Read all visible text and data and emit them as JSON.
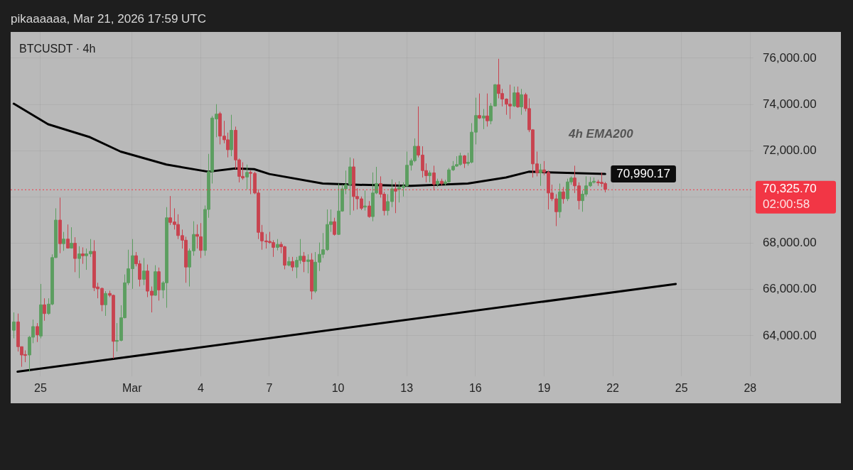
{
  "chart_data": {
    "type": "candlestick",
    "title": "BTCUSDT · 4h",
    "subtitle": "pikaaaaaa, Mar 21, 2026 17:59 UTC",
    "x": [
      "2026-02-23T20:00",
      "2026-02-24T00:00",
      "2026-02-24T04:00",
      "2026-02-24T08:00",
      "2026-02-24T12:00",
      "2026-02-24T16:00",
      "2026-02-24T20:00",
      "2026-02-25T00:00",
      "2026-02-25T04:00",
      "2026-02-25T08:00",
      "2026-02-25T12:00",
      "2026-02-25T16:00",
      "2026-02-25T20:00",
      "2026-02-26T00:00",
      "2026-02-26T04:00",
      "2026-02-26T08:00",
      "2026-02-26T12:00",
      "2026-02-26T16:00",
      "2026-02-26T20:00",
      "2026-02-27T00:00",
      "2026-02-27T04:00",
      "2026-02-27T08:00",
      "2026-02-27T12:00",
      "2026-02-27T16:00",
      "2026-02-27T20:00",
      "2026-02-28T00:00",
      "2026-02-28T04:00",
      "2026-02-28T08:00",
      "2026-02-28T12:00",
      "2026-02-28T16:00",
      "2026-02-28T20:00",
      "2026-03-01T00:00",
      "2026-03-01T04:00",
      "2026-03-01T08:00",
      "2026-03-01T12:00",
      "2026-03-01T16:00",
      "2026-03-01T20:00",
      "2026-03-02T00:00",
      "2026-03-02T04:00",
      "2026-03-02T08:00",
      "2026-03-02T12:00",
      "2026-03-02T16:00",
      "2026-03-02T20:00",
      "2026-03-03T00:00",
      "2026-03-03T04:00",
      "2026-03-03T08:00",
      "2026-03-03T12:00",
      "2026-03-03T16:00",
      "2026-03-03T20:00",
      "2026-03-04T00:00",
      "2026-03-04T04:00",
      "2026-03-04T08:00",
      "2026-03-04T12:00",
      "2026-03-04T16:00",
      "2026-03-04T20:00",
      "2026-03-05T00:00",
      "2026-03-05T04:00",
      "2026-03-05T08:00",
      "2026-03-05T12:00",
      "2026-03-05T16:00",
      "2026-03-05T20:00",
      "2026-03-06T00:00",
      "2026-03-06T04:00",
      "2026-03-06T08:00",
      "2026-03-06T12:00",
      "2026-03-06T16:00",
      "2026-03-06T20:00",
      "2026-03-07T00:00",
      "2026-03-07T04:00",
      "2026-03-07T08:00",
      "2026-03-07T12:00",
      "2026-03-07T16:00",
      "2026-03-07T20:00",
      "2026-03-08T00:00",
      "2026-03-08T04:00",
      "2026-03-08T08:00",
      "2026-03-08T12:00",
      "2026-03-08T16:00",
      "2026-03-08T20:00",
      "2026-03-09T00:00",
      "2026-03-09T04:00",
      "2026-03-09T08:00",
      "2026-03-09T12:00",
      "2026-03-09T16:00",
      "2026-03-09T20:00",
      "2026-03-10T00:00",
      "2026-03-10T04:00",
      "2026-03-10T08:00",
      "2026-03-10T12:00",
      "2026-03-10T16:00",
      "2026-03-10T20:00",
      "2026-03-11T00:00",
      "2026-03-11T04:00",
      "2026-03-11T08:00",
      "2026-03-11T12:00",
      "2026-03-11T16:00",
      "2026-03-11T20:00",
      "2026-03-12T00:00",
      "2026-03-12T04:00",
      "2026-03-12T08:00",
      "2026-03-12T12:00",
      "2026-03-12T16:00",
      "2026-03-12T20:00",
      "2026-03-13T00:00",
      "2026-03-13T04:00",
      "2026-03-13T08:00",
      "2026-03-13T12:00",
      "2026-03-13T16:00",
      "2026-03-13T20:00",
      "2026-03-14T00:00",
      "2026-03-14T04:00",
      "2026-03-14T08:00",
      "2026-03-14T12:00",
      "2026-03-14T16:00",
      "2026-03-14T20:00",
      "2026-03-15T00:00",
      "2026-03-15T04:00",
      "2026-03-15T08:00",
      "2026-03-15T12:00",
      "2026-03-15T16:00",
      "2026-03-15T20:00",
      "2026-03-16T00:00",
      "2026-03-16T04:00",
      "2026-03-16T08:00",
      "2026-03-16T12:00",
      "2026-03-16T16:00",
      "2026-03-16T20:00",
      "2026-03-17T00:00",
      "2026-03-17T04:00",
      "2026-03-17T08:00",
      "2026-03-17T12:00",
      "2026-03-17T16:00",
      "2026-03-17T20:00",
      "2026-03-18T00:00",
      "2026-03-18T04:00",
      "2026-03-18T08:00",
      "2026-03-18T12:00",
      "2026-03-18T16:00",
      "2026-03-18T20:00",
      "2026-03-19T00:00",
      "2026-03-19T04:00",
      "2026-03-19T08:00",
      "2026-03-19T12:00",
      "2026-03-19T16:00",
      "2026-03-19T20:00",
      "2026-03-20T00:00",
      "2026-03-20T04:00",
      "2026-03-20T08:00",
      "2026-03-20T12:00",
      "2026-03-20T16:00",
      "2026-03-20T20:00",
      "2026-03-21T00:00",
      "2026-03-21T04:00",
      "2026-03-21T08:00",
      "2026-03-21T12:00",
      "2026-03-21T16:00"
    ],
    "ohlc": [
      [
        64240,
        65010,
        63890,
        64600
      ],
      [
        64600,
        64960,
        63320,
        63530
      ],
      [
        63530,
        63530,
        62660,
        63170
      ],
      [
        63190,
        63370,
        62860,
        63150
      ],
      [
        63170,
        63990,
        62450,
        63940
      ],
      [
        63940,
        64700,
        63680,
        64400
      ],
      [
        64400,
        64550,
        63730,
        64040
      ],
      [
        63990,
        66240,
        63890,
        65340
      ],
      [
        65340,
        65620,
        64650,
        64960
      ],
      [
        64960,
        65620,
        64910,
        65370
      ],
      [
        65370,
        67520,
        65320,
        67380
      ],
      [
        67380,
        69510,
        67360,
        69000
      ],
      [
        69000,
        69970,
        67570,
        67980
      ],
      [
        67980,
        68490,
        67670,
        68180
      ],
      [
        68180,
        68810,
        67770,
        67790
      ],
      [
        67790,
        68690,
        67770,
        68000
      ],
      [
        68000,
        68260,
        66750,
        67340
      ],
      [
        67340,
        67870,
        66490,
        67540
      ],
      [
        67540,
        67820,
        67110,
        67460
      ],
      [
        67460,
        67770,
        66850,
        67540
      ],
      [
        67540,
        68180,
        67410,
        67650
      ],
      [
        67650,
        68130,
        65930,
        66080
      ],
      [
        66110,
        66290,
        65620,
        66030
      ],
      [
        66050,
        66080,
        65060,
        65340
      ],
      [
        65340,
        65930,
        64860,
        65830
      ],
      [
        65830,
        65950,
        65670,
        65750
      ],
      [
        65750,
        65780,
        63020,
        63760
      ],
      [
        63760,
        64550,
        63320,
        63800
      ],
      [
        63800,
        65320,
        63760,
        64780
      ],
      [
        64780,
        66650,
        64750,
        66290
      ],
      [
        66290,
        67720,
        66190,
        66900
      ],
      [
        66900,
        68180,
        66030,
        67460
      ],
      [
        67460,
        67620,
        67000,
        67110
      ],
      [
        67110,
        67260,
        66130,
        66440
      ],
      [
        66440,
        67360,
        66190,
        66800
      ],
      [
        66800,
        67080,
        65670,
        65930
      ],
      [
        65930,
        66130,
        65010,
        65750
      ],
      [
        65750,
        67050,
        65730,
        66770
      ],
      [
        66770,
        66950,
        65520,
        65980
      ],
      [
        65980,
        66360,
        65620,
        66290
      ],
      [
        66290,
        69560,
        65210,
        69100
      ],
      [
        69100,
        70040,
        68790,
        68900
      ],
      [
        68920,
        69510,
        68590,
        68810
      ],
      [
        68810,
        69250,
        68180,
        68330
      ],
      [
        68330,
        68590,
        67770,
        68130
      ],
      [
        68130,
        68280,
        66290,
        66970
      ],
      [
        66970,
        67770,
        66130,
        67670
      ],
      [
        67670,
        68950,
        67460,
        68380
      ],
      [
        68380,
        68810,
        67770,
        68300
      ],
      [
        68280,
        68870,
        67360,
        67690
      ],
      [
        67690,
        69630,
        67460,
        69460
      ],
      [
        69460,
        71860,
        69100,
        71090
      ],
      [
        71090,
        73500,
        70580,
        73410
      ],
      [
        73370,
        74010,
        72580,
        73580
      ],
      [
        73600,
        73680,
        72270,
        72630
      ],
      [
        72630,
        73290,
        72320,
        72470
      ],
      [
        72470,
        72780,
        71710,
        72040
      ],
      [
        72040,
        73550,
        71760,
        72880
      ],
      [
        72880,
        73040,
        71200,
        71600
      ],
      [
        71600,
        71660,
        70630,
        70890
      ],
      [
        70890,
        71500,
        70740,
        70820
      ],
      [
        70860,
        71400,
        70330,
        71060
      ],
      [
        71060,
        71140,
        70120,
        71020
      ],
      [
        71020,
        71090,
        70120,
        70170
      ],
      [
        70170,
        70330,
        68180,
        68470
      ],
      [
        68470,
        68790,
        67720,
        68100
      ],
      [
        68100,
        68400,
        67770,
        68060
      ],
      [
        68080,
        68490,
        67980,
        68030
      ],
      [
        68030,
        68130,
        67410,
        67820
      ],
      [
        67820,
        68180,
        67690,
        67950
      ],
      [
        67950,
        68060,
        67570,
        67850
      ],
      [
        67850,
        67890,
        66870,
        67050
      ],
      [
        67050,
        67410,
        67000,
        67210
      ],
      [
        67210,
        67410,
        66800,
        66970
      ],
      [
        66970,
        67410,
        66490,
        67260
      ],
      [
        67260,
        68180,
        67110,
        67440
      ],
      [
        67440,
        67620,
        66750,
        67210
      ],
      [
        67210,
        67520,
        66700,
        67280
      ],
      [
        67280,
        67570,
        65570,
        65930
      ],
      [
        65930,
        67620,
        65850,
        67180
      ],
      [
        67180,
        68030,
        66800,
        67520
      ],
      [
        67520,
        68440,
        67360,
        67720
      ],
      [
        67720,
        69460,
        67670,
        68810
      ],
      [
        68810,
        69460,
        68490,
        68930
      ],
      [
        68930,
        69100,
        68330,
        68380
      ],
      [
        68380,
        70580,
        68360,
        69390
      ],
      [
        69390,
        70530,
        69360,
        70350
      ],
      [
        70350,
        71140,
        70120,
        70530
      ],
      [
        70530,
        71710,
        69220,
        71300
      ],
      [
        71300,
        71660,
        69410,
        70020
      ],
      [
        70020,
        70380,
        69460,
        69920
      ],
      [
        69920,
        70020,
        69430,
        69510
      ],
      [
        69560,
        70280,
        69410,
        69610
      ],
      [
        69610,
        69820,
        69100,
        69150
      ],
      [
        69150,
        71060,
        68950,
        70170
      ],
      [
        70170,
        71300,
        70120,
        70580
      ],
      [
        70580,
        70890,
        69970,
        70120
      ],
      [
        70120,
        70220,
        69200,
        69410
      ],
      [
        69410,
        70120,
        69200,
        69800
      ],
      [
        69800,
        70760,
        69560,
        70350
      ],
      [
        70350,
        70630,
        69300,
        70250
      ],
      [
        70330,
        70680,
        69760,
        70410
      ],
      [
        70410,
        70630,
        70020,
        70480
      ],
      [
        70480,
        71960,
        70430,
        71370
      ],
      [
        71370,
        71660,
        71140,
        71570
      ],
      [
        71570,
        72530,
        71500,
        72190
      ],
      [
        72190,
        73910,
        71710,
        71810
      ],
      [
        71810,
        72190,
        70840,
        71140
      ],
      [
        71140,
        71450,
        70630,
        70920
      ],
      [
        70920,
        71140,
        70630,
        71040
      ],
      [
        71040,
        71350,
        70280,
        70550
      ],
      [
        70550,
        70790,
        70430,
        70680
      ],
      [
        70680,
        70790,
        70480,
        70580
      ],
      [
        70580,
        70740,
        70480,
        70650
      ],
      [
        70650,
        71250,
        70610,
        71170
      ],
      [
        71170,
        71550,
        71120,
        71330
      ],
      [
        71330,
        71760,
        71300,
        71400
      ],
      [
        71400,
        71910,
        71350,
        71780
      ],
      [
        71780,
        71810,
        71250,
        71450
      ],
      [
        71450,
        71910,
        71350,
        71500
      ],
      [
        71500,
        73190,
        71450,
        72800
      ],
      [
        72800,
        74290,
        72270,
        73520
      ],
      [
        73520,
        74470,
        73370,
        73410
      ],
      [
        73410,
        73800,
        72930,
        73500
      ],
      [
        73500,
        74470,
        73040,
        73290
      ],
      [
        73290,
        74060,
        73140,
        73930
      ],
      [
        73930,
        74880,
        73910,
        74850
      ],
      [
        74850,
        75970,
        74260,
        74470
      ],
      [
        74470,
        74670,
        73910,
        74230
      ],
      [
        74230,
        74260,
        73550,
        74010
      ],
      [
        74010,
        74850,
        73370,
        73930
      ],
      [
        73930,
        74770,
        73890,
        74500
      ],
      [
        74500,
        74770,
        73850,
        73890
      ],
      [
        73890,
        74670,
        73550,
        74420
      ],
      [
        74420,
        74500,
        73700,
        73820
      ],
      [
        73820,
        74260,
        72800,
        72900
      ],
      [
        72900,
        72930,
        70840,
        71430
      ],
      [
        71430,
        71960,
        70890,
        71040
      ],
      [
        71040,
        71430,
        70480,
        71170
      ],
      [
        71170,
        71550,
        70940,
        71060
      ],
      [
        71060,
        71140,
        69460,
        70170
      ],
      [
        70170,
        70530,
        69820,
        69920
      ],
      [
        69920,
        70120,
        68740,
        69360
      ],
      [
        69360,
        70580,
        69100,
        70220
      ],
      [
        70220,
        70430,
        69710,
        69920
      ],
      [
        69920,
        70790,
        69820,
        70650
      ],
      [
        70650,
        70890,
        70530,
        70820
      ],
      [
        70820,
        71350,
        70170,
        70480
      ],
      [
        70480,
        70630,
        69460,
        69840
      ],
      [
        69840,
        70280,
        69360,
        70120
      ],
      [
        70120,
        70890,
        70020,
        70480
      ],
      [
        70480,
        70860,
        70430,
        70630
      ],
      [
        70630,
        70840,
        70580,
        70680
      ],
      [
        70650,
        70740,
        70480,
        70610
      ],
      [
        70630,
        71060,
        70430,
        70580
      ],
      [
        70580,
        70650,
        70200,
        70325.7
      ]
    ],
    "series": [
      {
        "type": "line",
        "name": "4h EMA200",
        "color": "#000000",
        "x": [
          "2026-02-23T20:00",
          "2026-02-25T08:00",
          "2026-02-27T04:00",
          "2026-02-28T12:00",
          "2026-03-02T12:00",
          "2026-03-04T08:00",
          "2026-03-05T12:00",
          "2026-03-06T08:00",
          "2026-03-07T00:00",
          "2026-03-09T08:00",
          "2026-03-10T16:00",
          "2026-03-13T04:00",
          "2026-03-15T16:00",
          "2026-03-17T08:00",
          "2026-03-18T08:00",
          "2026-03-19T04:00",
          "2026-03-21T16:00"
        ],
        "values": [
          74030,
          73140,
          72580,
          71960,
          71400,
          71090,
          71230,
          71200,
          70990,
          70580,
          70530,
          70480,
          70580,
          70840,
          71090,
          71060,
          70990.17
        ],
        "value_labels": [
          null,
          null,
          null,
          null,
          null,
          null,
          null,
          null,
          null,
          null,
          null,
          null,
          null,
          null,
          null,
          null,
          "70,990.17"
        ]
      },
      {
        "type": "line",
        "color": "#000000",
        "x": [
          "2026-02-24T00:00",
          "2026-03-24T18:00"
        ],
        "values": [
          62450,
          66240
        ]
      }
    ],
    "xlim": [
      "2026-02-23T16:45",
      "2026-03-28T03:30"
    ],
    "xticks": [
      {
        "value": "2026-02-25",
        "label": "25"
      },
      {
        "value": "2026-03-01",
        "label": "Mar"
      },
      {
        "value": "2026-03-04",
        "label": "4"
      },
      {
        "value": "2026-03-07",
        "label": "7"
      },
      {
        "value": "2026-03-10",
        "label": "10"
      },
      {
        "value": "2026-03-13",
        "label": "13"
      },
      {
        "value": "2026-03-16",
        "label": "16"
      },
      {
        "value": "2026-03-19",
        "label": "19"
      },
      {
        "value": "2026-03-22",
        "label": "22"
      },
      {
        "value": "2026-03-25",
        "label": "25"
      },
      {
        "value": "2026-03-28",
        "label": "28"
      }
    ],
    "ylim": [
      62250,
      77130
    ],
    "yticks": [
      {
        "value": 64000,
        "label": "64,000.00"
      },
      {
        "value": 66000,
        "label": "66,000.00"
      },
      {
        "value": 68000,
        "label": "68,000.00"
      },
      {
        "value": 70000,
        "label": null
      },
      {
        "value": 72000,
        "label": "72,000.00"
      },
      {
        "value": 74000,
        "label": "74,000.00"
      },
      {
        "value": 76000,
        "label": "76,000.00"
      }
    ],
    "grid": true,
    "marker": "none",
    "ref_lines": [
      {
        "axis": "y",
        "value": 70325.7,
        "label": "70,325.70",
        "color": "#f23645",
        "line_style": "dotted"
      }
    ],
    "annotations": [
      "02:00:58"
    ]
  }
}
